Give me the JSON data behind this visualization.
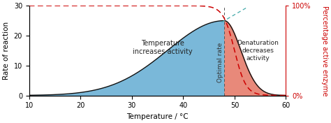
{
  "title": "",
  "xlabel": "Temperature / °C",
  "ylabel_left": "Rate of reaction",
  "ylabel_right": "Percentage active enzyme",
  "xlim": [
    10,
    60
  ],
  "ylim_left": [
    0,
    30
  ],
  "ylim_right": [
    0,
    100
  ],
  "x_ticks": [
    10,
    20,
    30,
    40,
    50,
    60
  ],
  "y_ticks_left": [
    0,
    10,
    20,
    30
  ],
  "y_tick_labels_right": [
    "0%",
    "100%"
  ],
  "optimal_temp": 48,
  "blue_fill_color": "#7ab8d9",
  "red_fill_color": "#e8897a",
  "line_color": "#111111",
  "optimal_line_color": "#555555",
  "bg_color": "#ffffff",
  "text_increases": "Temperature\nincreases activity",
  "text_denaturation": "Denaturation\ndecreases\nactivity",
  "text_optimal": "Optimal rate",
  "left_ylabel_color": "#000000",
  "right_ylabel_color": "#cc0000",
  "red_dashed_color": "#cc0000",
  "cyan_line_color": "#44aaaa"
}
